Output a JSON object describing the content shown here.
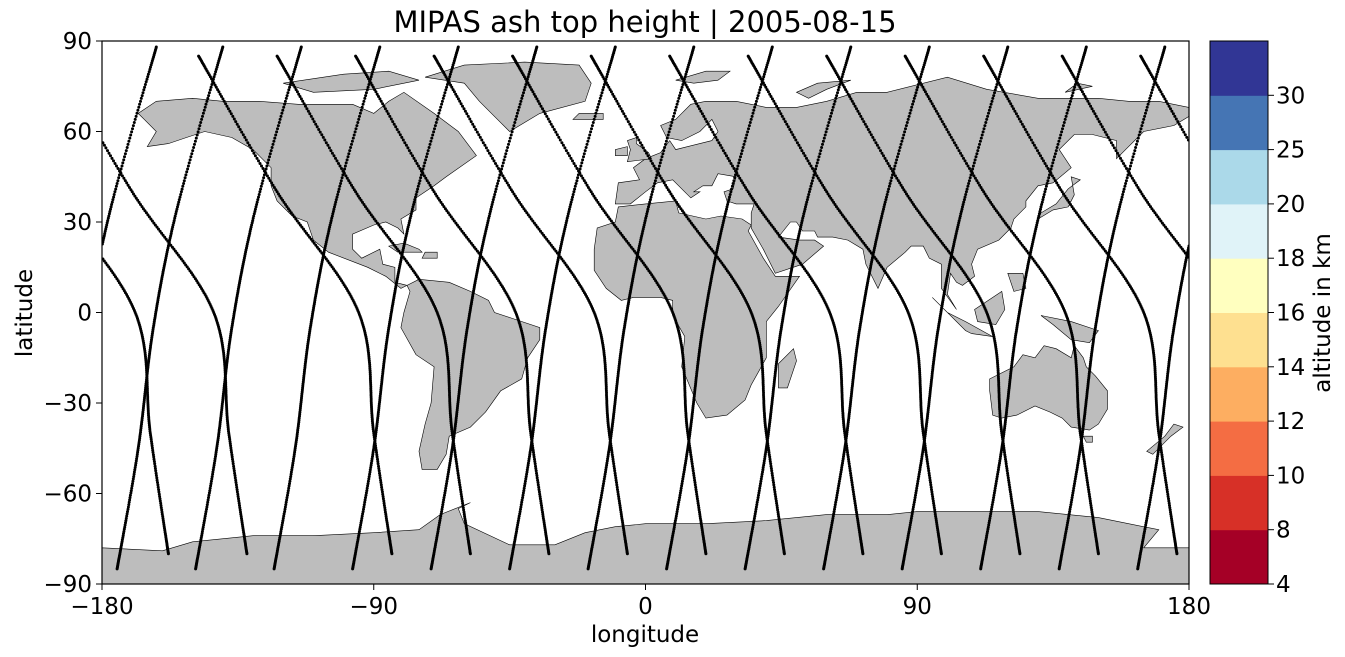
{
  "title": "MIPAS ash top height | 2005-08-15",
  "map": {
    "projection": "PlateCarree",
    "land_color": "#bdbdbd",
    "ocean_color": "#ffffff",
    "coastline_color": "#000000"
  },
  "axes": {
    "xlabel": "longitude",
    "ylabel": "latitude",
    "xlim": [
      -180,
      180
    ],
    "ylim": [
      -90,
      90
    ],
    "xticks": [
      -180,
      -90,
      0,
      90,
      180
    ],
    "yticks": [
      90,
      60,
      30,
      0,
      -30,
      -60,
      -90
    ],
    "xtick_labels": [
      "−180",
      "−90",
      "0",
      "90",
      "180"
    ],
    "ytick_labels": [
      "90",
      "60",
      "30",
      "0",
      "−30",
      "−60",
      "−90"
    ]
  },
  "colorbar": {
    "label": "altitude in km",
    "boundaries": [
      4,
      8,
      10,
      12,
      14,
      16,
      18,
      20,
      25,
      30
    ],
    "tick_labels": [
      "4",
      "8",
      "10",
      "12",
      "14",
      "16",
      "18",
      "20",
      "25",
      "30"
    ],
    "colors": [
      "#a50026",
      "#d73027",
      "#f46d43",
      "#fdae61",
      "#fee090",
      "#ffffbf",
      "#e0f3f8",
      "#abd9e9",
      "#4575b4",
      "#313695"
    ]
  },
  "chart_data": {
    "type": "scatter",
    "marker_color": "#000000",
    "description_of_values": "MIPAS orbit track sample locations (lon, lat) on 2005-08-15",
    "descending_tracks": [
      {
        "lon": [
          -148,
          -122,
          -95,
          -90,
          -84
        ]
      },
      {
        "lon": [
          -122,
          -96,
          -69,
          -64,
          -58
        ]
      },
      {
        "lon": [
          -96,
          -70,
          -43,
          -38,
          -32
        ]
      },
      {
        "lon": [
          -70,
          -44,
          -17,
          -12,
          -6
        ]
      },
      {
        "lon": [
          -44,
          -18,
          9,
          14,
          20
        ]
      },
      {
        "lon": [
          -18,
          8,
          35,
          40,
          46
        ]
      },
      {
        "lon": [
          8,
          34,
          61,
          66,
          72
        ]
      },
      {
        "lon": [
          34,
          60,
          87,
          92,
          98
        ]
      },
      {
        "lon": [
          60,
          86,
          113,
          118,
          124
        ]
      },
      {
        "lon": [
          86,
          112,
          139,
          144,
          150
        ]
      },
      {
        "lon": [
          112,
          138,
          165,
          170,
          176
        ]
      },
      {
        "lon": [
          138,
          164,
          191,
          196,
          202
        ]
      },
      {
        "lon": [
          164,
          190,
          217,
          222,
          228
        ]
      }
    ],
    "track_latitudes": [
      85,
      40,
      0,
      -40,
      -80
    ],
    "ascending_tracks": [
      {
        "lon": [
          -175,
          -168,
          -163,
          -155,
          -140
        ]
      },
      {
        "lon": [
          -149,
          -142,
          -137,
          -129,
          -114
        ]
      },
      {
        "lon": [
          -123,
          -116,
          -111,
          -103,
          -88
        ]
      },
      {
        "lon": [
          -97,
          -90,
          -85,
          -77,
          -62
        ]
      },
      {
        "lon": [
          -71,
          -64,
          -59,
          -51,
          -36
        ]
      },
      {
        "lon": [
          -45,
          -38,
          -33,
          -25,
          -10
        ]
      },
      {
        "lon": [
          -19,
          -12,
          -7,
          1,
          16
        ]
      },
      {
        "lon": [
          7,
          14,
          19,
          27,
          42
        ]
      },
      {
        "lon": [
          33,
          40,
          45,
          53,
          68
        ]
      },
      {
        "lon": [
          59,
          66,
          71,
          79,
          94
        ]
      },
      {
        "lon": [
          85,
          92,
          97,
          105,
          120
        ]
      },
      {
        "lon": [
          111,
          118,
          123,
          131,
          146
        ]
      },
      {
        "lon": [
          137,
          144,
          149,
          157,
          172
        ]
      },
      {
        "lon": [
          163,
          170,
          175,
          183,
          198
        ]
      }
    ],
    "ascending_latitudes": [
      -85,
      -45,
      -5,
      35,
      88
    ]
  }
}
